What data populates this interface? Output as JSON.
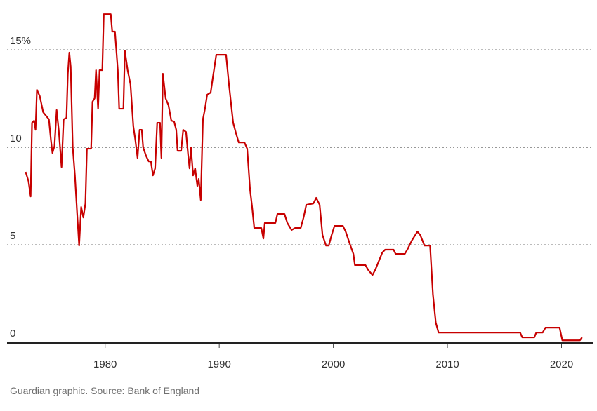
{
  "chart_data": {
    "type": "line",
    "source": "Guardian graphic. Source: Bank of England",
    "color": "#c70000",
    "grid": true,
    "xlim": [
      1971.4,
      2022.8
    ],
    "ylim": [
      0,
      17.2
    ],
    "xticks": [
      1980,
      1990,
      2000,
      2010,
      2020
    ],
    "yticks": [
      0,
      5,
      10,
      {
        "value": 15,
        "label": "15%"
      }
    ],
    "x": [
      1973.03,
      1973.28,
      1973.47,
      1973.59,
      1973.77,
      1973.9,
      1974.02,
      1974.27,
      1974.57,
      1974.82,
      1975.07,
      1975.25,
      1975.38,
      1975.56,
      1975.75,
      1975.93,
      1976.18,
      1976.36,
      1976.61,
      1976.73,
      1976.86,
      1976.98,
      1977.16,
      1977.35,
      1977.53,
      1977.72,
      1977.9,
      1978.09,
      1978.27,
      1978.4,
      1978.77,
      1978.89,
      1979.08,
      1979.2,
      1979.38,
      1979.51,
      1979.75,
      1979.88,
      1980.49,
      1980.62,
      1980.86,
      1981.11,
      1981.23,
      1981.6,
      1981.73,
      1981.97,
      1982.22,
      1982.47,
      1982.65,
      1982.84,
      1983.02,
      1983.21,
      1983.33,
      1983.58,
      1983.82,
      1984.01,
      1984.19,
      1984.38,
      1984.56,
      1984.81,
      1984.93,
      1985.06,
      1985.3,
      1985.55,
      1985.8,
      1986.04,
      1986.23,
      1986.35,
      1986.66,
      1986.84,
      1987.09,
      1987.27,
      1987.4,
      1987.52,
      1987.71,
      1987.89,
      1988.08,
      1988.2,
      1988.38,
      1988.57,
      1988.75,
      1988.94,
      1989.25,
      1989.49,
      1989.74,
      1990.6,
      1990.85,
      1991.22,
      1991.47,
      1991.71,
      1992.21,
      1992.45,
      1992.7,
      1992.88,
      1993.07,
      1993.69,
      1993.87,
      1993.99,
      1994.92,
      1995.1,
      1995.72,
      1995.97,
      1996.34,
      1996.65,
      1997.14,
      1997.39,
      1997.63,
      1998.25,
      1998.5,
      1998.8,
      1999.05,
      1999.36,
      1999.6,
      1999.85,
      2000.1,
      2000.84,
      2001.08,
      2001.39,
      2001.76,
      2001.89,
      2002.81,
      2003.06,
      2003.43,
      2003.67,
      2004.04,
      2004.29,
      2004.54,
      2005.28,
      2005.46,
      2006.26,
      2006.51,
      2006.88,
      2007.37,
      2007.62,
      2007.99,
      2008.48,
      2008.73,
      2008.98,
      2009.22,
      2016.37,
      2016.56,
      2017.61,
      2017.79,
      2018.35,
      2018.59,
      2019.83,
      2020.07,
      2021.61,
      2021.8
    ],
    "values": [
      8.74,
      8.27,
      7.48,
      11.26,
      11.37,
      10.9,
      12.95,
      12.63,
      11.8,
      11.62,
      11.44,
      10.36,
      9.71,
      10.07,
      11.91,
      10.9,
      8.99,
      11.44,
      11.51,
      13.78,
      14.86,
      14.14,
      10,
      8.56,
      6.76,
      4.96,
      6.94,
      6.4,
      7.12,
      9.93,
      9.93,
      12.34,
      12.52,
      13.96,
      11.98,
      13.96,
      13.96,
      16.83,
      16.83,
      15.94,
      15.94,
      13.96,
      11.98,
      11.98,
      14.96,
      13.96,
      13.24,
      11.08,
      10.36,
      9.46,
      10.9,
      10.9,
      10,
      9.57,
      9.28,
      9.28,
      8.56,
      8.92,
      11.26,
      11.26,
      9.46,
      13.78,
      12.52,
      12.16,
      11.37,
      11.33,
      10.9,
      9.82,
      9.82,
      10.9,
      10.79,
      9.64,
      8.92,
      10,
      8.56,
      8.92,
      8.02,
      8.38,
      7.3,
      11.44,
      11.98,
      12.7,
      12.81,
      13.78,
      14.75,
      14.75,
      13.24,
      11.26,
      10.72,
      10.25,
      10.25,
      9.93,
      7.84,
      6.94,
      5.86,
      5.86,
      5.32,
      6.12,
      6.12,
      6.58,
      6.58,
      6.12,
      5.76,
      5.86,
      5.86,
      6.4,
      7.05,
      7.12,
      7.41,
      7.05,
      5.5,
      4.96,
      4.96,
      5.5,
      5.97,
      5.97,
      5.68,
      5.14,
      4.53,
      3.96,
      3.96,
      3.71,
      3.45,
      3.71,
      4.24,
      4.6,
      4.75,
      4.75,
      4.53,
      4.53,
      4.78,
      5.22,
      5.68,
      5.5,
      4.96,
      4.96,
      2.45,
      1.01,
      0.5,
      0.5,
      0.25,
      0.25,
      0.5,
      0.5,
      0.75,
      0.75,
      0.1,
      0.1,
      0.25
    ]
  }
}
